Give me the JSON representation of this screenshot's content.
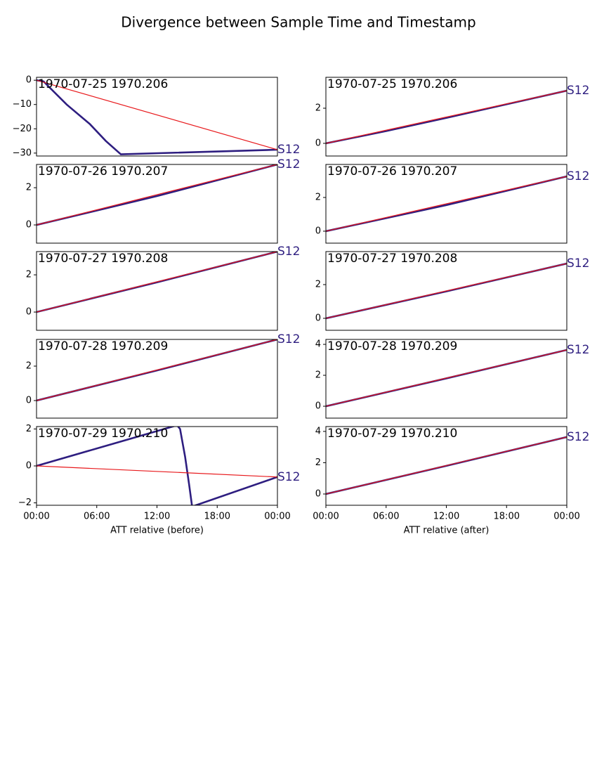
{
  "title": "Divergence between Sample Time and Timestamp",
  "chart_data": [
    {
      "type": "line",
      "title": "1970-07-25 1970.206",
      "xlim": [
        0,
        24
      ],
      "ylim": [
        -31.2,
        1.2
      ],
      "yticks": [
        {
          "value": -30,
          "label": "−30"
        },
        {
          "value": -20,
          "label": "−20"
        },
        {
          "value": -10,
          "label": "−10"
        },
        0
      ],
      "series": [
        {
          "name": "S12",
          "color": "#2e1e80",
          "x": [
            0,
            0.7,
            3,
            5.3,
            6.9,
            8.4,
            24
          ],
          "values": [
            0,
            -0.5,
            -10,
            -18,
            -25,
            -30.5,
            -28.6
          ]
        },
        {
          "color": "#e8191c",
          "x": [
            0,
            24
          ],
          "values": [
            0,
            -28.6
          ]
        }
      ]
    },
    {
      "type": "line",
      "title": "1970-07-25 1970.206",
      "xlim": [
        0,
        24
      ],
      "ylim": [
        -0.72,
        3.76
      ],
      "yticks": [
        0,
        2
      ],
      "series": [
        {
          "name": "S12",
          "color": "#2e1e80",
          "x": [
            0,
            6,
            12,
            24
          ],
          "values": [
            0,
            0.7,
            1.45,
            3.0
          ]
        },
        {
          "color": "#e8191c",
          "x": [
            0,
            24
          ],
          "values": [
            0,
            3.0
          ]
        }
      ]
    },
    {
      "type": "line",
      "title": "1970-07-26 1970.207",
      "xlim": [
        0,
        24
      ],
      "ylim": [
        -0.98,
        3.25
      ],
      "yticks": [
        0,
        2
      ],
      "series": [
        {
          "name": "S12",
          "color": "#2e1e80",
          "x": [
            0,
            12,
            24
          ],
          "values": [
            0,
            1.55,
            3.25
          ]
        },
        {
          "color": "#e8191c",
          "x": [
            0,
            24
          ],
          "values": [
            0,
            3.25
          ]
        }
      ]
    },
    {
      "type": "line",
      "title": "1970-07-26 1970.207",
      "xlim": [
        0,
        24
      ],
      "ylim": [
        -0.71,
        3.96
      ],
      "yticks": [
        0,
        2
      ],
      "series": [
        {
          "name": "S12",
          "color": "#2e1e80",
          "x": [
            0,
            12,
            24
          ],
          "values": [
            0,
            1.55,
            3.25
          ]
        },
        {
          "color": "#e8191c",
          "x": [
            0,
            24
          ],
          "values": [
            0,
            3.25
          ]
        }
      ]
    },
    {
      "type": "line",
      "title": "1970-07-27 1970.208",
      "xlim": [
        0,
        24
      ],
      "ylim": [
        -0.98,
        3.25
      ],
      "yticks": [
        0,
        2
      ],
      "series": [
        {
          "name": "S12",
          "color": "#2e1e80",
          "x": [
            0,
            12,
            24
          ],
          "values": [
            0,
            1.6,
            3.25
          ]
        },
        {
          "color": "#e8191c",
          "x": [
            0,
            24
          ],
          "values": [
            0,
            3.25
          ]
        }
      ]
    },
    {
      "type": "line",
      "title": "1970-07-27 1970.208",
      "xlim": [
        0,
        24
      ],
      "ylim": [
        -0.71,
        3.96
      ],
      "yticks": [
        0,
        2
      ],
      "series": [
        {
          "name": "S12",
          "color": "#2e1e80",
          "x": [
            0,
            12,
            24
          ],
          "values": [
            0,
            1.6,
            3.25
          ]
        },
        {
          "color": "#e8191c",
          "x": [
            0,
            24
          ],
          "values": [
            0,
            3.25
          ]
        }
      ]
    },
    {
      "type": "line",
      "title": "1970-07-28 1970.209",
      "xlim": [
        0,
        24
      ],
      "ylim": [
        -1.02,
        3.55
      ],
      "yticks": [
        0,
        2
      ],
      "series": [
        {
          "name": "S12",
          "color": "#2e1e80",
          "x": [
            0,
            12,
            24
          ],
          "values": [
            0,
            1.75,
            3.55
          ]
        },
        {
          "color": "#e8191c",
          "x": [
            0,
            24
          ],
          "values": [
            0,
            3.55
          ]
        }
      ]
    },
    {
      "type": "line",
      "title": "1970-07-28 1970.209",
      "xlim": [
        0,
        24
      ],
      "ylim": [
        -0.77,
        4.32
      ],
      "yticks": [
        0,
        2,
        4
      ],
      "series": [
        {
          "name": "S12",
          "color": "#2e1e80",
          "x": [
            0,
            12,
            24
          ],
          "values": [
            0,
            1.8,
            3.64
          ]
        },
        {
          "color": "#e8191c",
          "x": [
            0,
            24
          ],
          "values": [
            0,
            3.64
          ]
        }
      ]
    },
    {
      "type": "line",
      "title": "1970-07-29 1970.210",
      "xlim": [
        0,
        24
      ],
      "ylim": [
        -2.13,
        2.13
      ],
      "yticks": [
        {
          "value": -2,
          "label": "−2"
        },
        0,
        2
      ],
      "xticks": [
        {
          "value": 0,
          "label": "00:00"
        },
        {
          "value": 6,
          "label": "06:00"
        },
        {
          "value": 12,
          "label": "12:00"
        },
        {
          "value": 18,
          "label": "18:00"
        },
        {
          "value": 24,
          "label": "00:00"
        }
      ],
      "xlabel": "ATT relative (before)",
      "series": [
        {
          "name": "S12",
          "color": "#2e1e80",
          "x": [
            0,
            14.0,
            14.3,
            14.8,
            15.2,
            15.5,
            24
          ],
          "values": [
            0,
            2.2,
            2.0,
            0.5,
            -1.0,
            -2.2,
            -0.6
          ]
        },
        {
          "color": "#e8191c",
          "x": [
            0,
            24
          ],
          "values": [
            0,
            -0.6
          ]
        }
      ]
    },
    {
      "type": "line",
      "title": "1970-07-29 1970.210",
      "xlim": [
        0,
        24
      ],
      "ylim": [
        -0.72,
        4.31
      ],
      "yticks": [
        0,
        2,
        4
      ],
      "xticks": [
        {
          "value": 0,
          "label": "00:00"
        },
        {
          "value": 6,
          "label": "06:00"
        },
        {
          "value": 12,
          "label": "12:00"
        },
        {
          "value": 18,
          "label": "18:00"
        },
        {
          "value": 24,
          "label": "00:00"
        }
      ],
      "xlabel": "ATT relative (after)",
      "series": [
        {
          "name": "S12",
          "color": "#2e1e80",
          "x": [
            0,
            12,
            24
          ],
          "values": [
            0,
            1.8,
            3.64
          ]
        },
        {
          "color": "#e8191c",
          "x": [
            0,
            24
          ],
          "values": [
            0,
            3.64
          ]
        }
      ]
    }
  ]
}
